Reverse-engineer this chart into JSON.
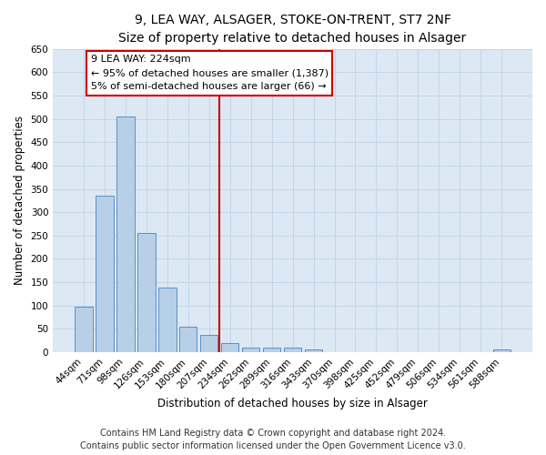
{
  "title": "9, LEA WAY, ALSAGER, STOKE-ON-TRENT, ST7 2NF",
  "subtitle": "Size of property relative to detached houses in Alsager",
  "xlabel": "Distribution of detached houses by size in Alsager",
  "ylabel": "Number of detached properties",
  "bar_labels": [
    "44sqm",
    "71sqm",
    "98sqm",
    "126sqm",
    "153sqm",
    "180sqm",
    "207sqm",
    "234sqm",
    "262sqm",
    "289sqm",
    "316sqm",
    "343sqm",
    "370sqm",
    "398sqm",
    "425sqm",
    "452sqm",
    "479sqm",
    "506sqm",
    "534sqm",
    "561sqm",
    "588sqm"
  ],
  "bar_values": [
    97,
    335,
    505,
    255,
    138,
    54,
    37,
    20,
    10,
    10,
    10,
    5,
    0,
    0,
    0,
    0,
    0,
    0,
    0,
    0,
    5
  ],
  "bar_color": "#b8cfe8",
  "bar_edge_color": "#5b8fc4",
  "vline_color": "#cc0000",
  "vline_label": "9 LEA WAY: 224sqm",
  "annotation_line1": "← 95% of detached houses are smaller (1,387)",
  "annotation_line2": "5% of semi-detached houses are larger (66) →",
  "box_edge_color": "#cc0000",
  "ylim": [
    0,
    650
  ],
  "yticks": [
    0,
    50,
    100,
    150,
    200,
    250,
    300,
    350,
    400,
    450,
    500,
    550,
    600,
    650
  ],
  "grid_color": "#c5d5e8",
  "bg_color": "#dce8f4",
  "title_fontsize": 10,
  "subtitle_fontsize": 9,
  "axis_label_fontsize": 8.5,
  "tick_fontsize": 7.5,
  "annotation_fontsize": 8,
  "footer_text": "Contains HM Land Registry data © Crown copyright and database right 2024.\nContains public sector information licensed under the Open Government Licence v3.0.",
  "footer_fontsize": 7
}
